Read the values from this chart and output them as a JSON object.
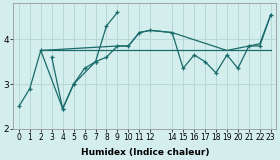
{
  "xlabel": "Humidex (Indice chaleur)",
  "bg_color": "#d4eeed",
  "grid_color": "#b8d8d8",
  "line_color": "#1a6b6b",
  "line1": {
    "x": [
      0,
      1,
      2,
      4,
      5,
      7,
      8,
      9
    ],
    "y": [
      2.5,
      2.9,
      3.75,
      2.45,
      3.0,
      3.5,
      4.3,
      4.6
    ]
  },
  "line2": {
    "x": [
      2,
      3,
      4,
      5,
      6,
      7,
      8,
      9,
      10,
      11,
      12,
      14,
      15,
      16,
      17,
      18,
      19,
      20,
      21,
      22,
      23
    ],
    "y": [
      3.75,
      3.75,
      3.75,
      3.75,
      3.75,
      3.75,
      3.75,
      3.75,
      3.75,
      3.75,
      3.75,
      3.75,
      3.75,
      3.75,
      3.75,
      3.75,
      3.75,
      3.75,
      3.75,
      3.75,
      3.75
    ]
  },
  "line3": {
    "x": [
      3,
      4,
      5,
      6,
      7,
      8,
      9,
      10,
      11,
      12,
      14,
      15,
      16,
      17,
      18,
      19,
      20,
      21,
      22,
      23
    ],
    "y": [
      3.6,
      2.45,
      3.0,
      3.35,
      3.5,
      3.6,
      3.85,
      3.85,
      4.15,
      4.2,
      4.15,
      3.35,
      3.65,
      3.5,
      3.25,
      3.65,
      3.35,
      3.85,
      3.85,
      4.55
    ]
  },
  "line4": {
    "x": [
      2,
      9,
      10,
      11,
      12,
      14,
      19,
      21,
      22,
      23
    ],
    "y": [
      3.75,
      3.85,
      3.85,
      4.15,
      4.2,
      4.15,
      3.75,
      3.85,
      3.9,
      4.55
    ]
  },
  "xlim": [
    -0.5,
    23.5
  ],
  "ylim": [
    2.0,
    4.8
  ],
  "yticks": [
    2,
    3,
    4
  ],
  "xticks": [
    0,
    1,
    2,
    3,
    4,
    5,
    6,
    7,
    8,
    9,
    10,
    11,
    12,
    14,
    15,
    16,
    17,
    18,
    19,
    20,
    21,
    22,
    23
  ]
}
